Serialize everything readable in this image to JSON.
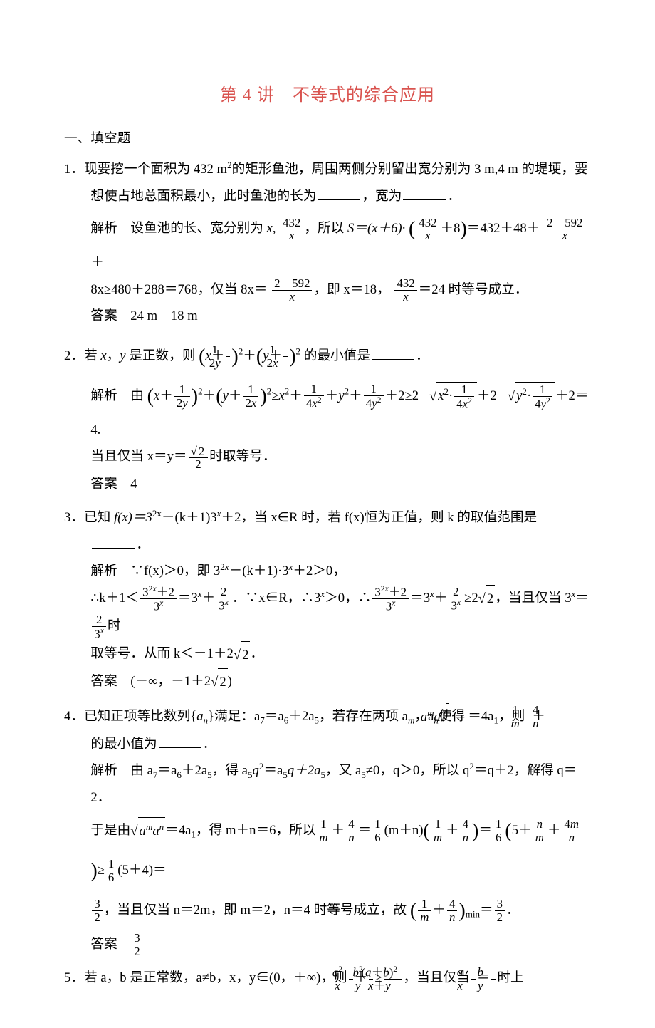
{
  "title_color": "#d9534f",
  "title": "第 4 讲　不等式的综合应用",
  "section_heading": "一、填空题",
  "questions": [
    {
      "number": "1．",
      "prompt_a": "现要挖一个面积为 432 m",
      "prompt_sup": "2",
      "prompt_b": "的矩形鱼池，周围两侧分别留出宽分别为 3 m,4 m 的堤埂，要想使占地总面积最小，此时鱼池的长为",
      "prompt_c": "，宽为",
      "prompt_d": "．",
      "sol_label": "解析　",
      "sol1_a": "设鱼池的长、宽分别为 ",
      "sol1_b": "，所以 ",
      "sol1_expr1": "S＝(x＋6)·",
      "sol1_c": "＝432＋48＋",
      "sol1_d": "＋",
      "sol1_e": "8x≥480＋288＝768，仅当 8x＝",
      "sol1_f": "，即 x＝18，",
      "sol1_g": "＝24 时等号成立．",
      "ans_label": "答案　",
      "ans": "24 m　18 m",
      "f1_n": "432",
      "f1_d": "x",
      "f2_n": "432",
      "f2_d": "x",
      "f2_plus": "＋8",
      "f3_n": "2　592",
      "f3_d": "x",
      "f4_n": "2　592",
      "f4_d": "x",
      "f5_n": "432",
      "f5_d": "x"
    },
    {
      "number": "2．",
      "prompt_a": "若 ",
      "prompt_b": "，",
      "prompt_c": " 是正数，则 ",
      "prompt_d": " 的最小值是",
      "prompt_e": "．",
      "sol_label": "解析　由 ",
      "sol_tail": "＝4.",
      "sol_eq": "当且仅当 x＝y＝",
      "sol_eq_b": "时取等号．",
      "ans_label": "答案　",
      "ans": "4"
    },
    {
      "number": "3．",
      "prompt_a": "已知 ",
      "prompt_fx": "f(x)＝3",
      "prompt_exp1": "2x",
      "prompt_mid": "－(k＋1)3",
      "prompt_exp2": "x",
      "prompt_b": "＋2，当 x∈R 时，若 f(x)恒为正值，则 k 的取值范围是",
      "prompt_c": "．",
      "sol_label": "解析　",
      "sol_a": "∵f(x)＞0，即 3",
      "sol_a2": "－(k＋1)·3",
      "sol_a3": "＋2＞0，",
      "sol_b": "∴k＋1＜",
      "sol_c": "＝3",
      "sol_c2": "＋",
      "sol_d": "．∵x∈R，∴3",
      "sol_d2": "＞0，∴",
      "sol_e": "＝3",
      "sol_e2": "＋",
      "sol_f": "≥2",
      "sol_g": "，当且仅当 3",
      "sol_g2": "＝",
      "sol_h": "时",
      "sol_i": "取等号．从而 k＜－1＋2",
      "sol_j": "．",
      "ans_label": "答案　",
      "ans_a": "(－∞，－1＋2",
      "ans_b": ")"
    },
    {
      "number": "4．",
      "prompt_a": "已知正项等比数列{",
      "prompt_an": "a",
      "prompt_ansub": "n",
      "prompt_b": "}满足：a",
      "prompt_b7": "7",
      "prompt_c": "＝a",
      "prompt_c6": "6",
      "prompt_d": "＋2a",
      "prompt_d5": "5",
      "prompt_e": "，若存在两项 a",
      "prompt_em": "m",
      "prompt_f": "，a",
      "prompt_fn": "n",
      "prompt_g": "使得",
      "prompt_root": "a",
      "prompt_root_m": "m",
      "prompt_root_a2": "a",
      "prompt_root_n": "n",
      "prompt_h": "＝4a",
      "prompt_h1": "1",
      "prompt_i": "，则",
      "prompt_j": "的最小值为",
      "prompt_k": "．",
      "sol_label": "解析　",
      "sol_a": "由 a",
      "sol_b": "＝a",
      "sol_c": "＋2a",
      "sol_d": "，得 a",
      "sol_e": "q",
      "sol_e2": "2",
      "sol_f": "＝a",
      "sol_g": "q＋2a",
      "sol_h": "，又 a",
      "sol_i": "≠0，q＞0，所以 q",
      "sol_j": "＝q＋2，解得 q＝2．",
      "sol2_a": "于是由",
      "sol2_b": "＝4a",
      "sol2_c": "，得 m＋n＝6，所以",
      "sol2_d": "＝",
      "sol2_e": "(m＋n)",
      "sol2_f": "＝",
      "sol2_g": "5＋",
      "sol2_h": "＋",
      "sol2_i": "≥",
      "sol2_j": "(5＋4)＝",
      "sol3_a": "，当且仅当 n＝2m，即 m＝2，n＝4 时等号成立，故 ",
      "sol3_b": "＝",
      "sol3_c": "．",
      "ans_label": "答案　"
    },
    {
      "number": "5．",
      "prompt_a": "若 a，b 是正常数，a≠b，x，y∈(0，＋∞)，则",
      "prompt_b": "≥",
      "prompt_c": "，当且仅当",
      "prompt_d": "＝",
      "prompt_e": "时上"
    }
  ]
}
